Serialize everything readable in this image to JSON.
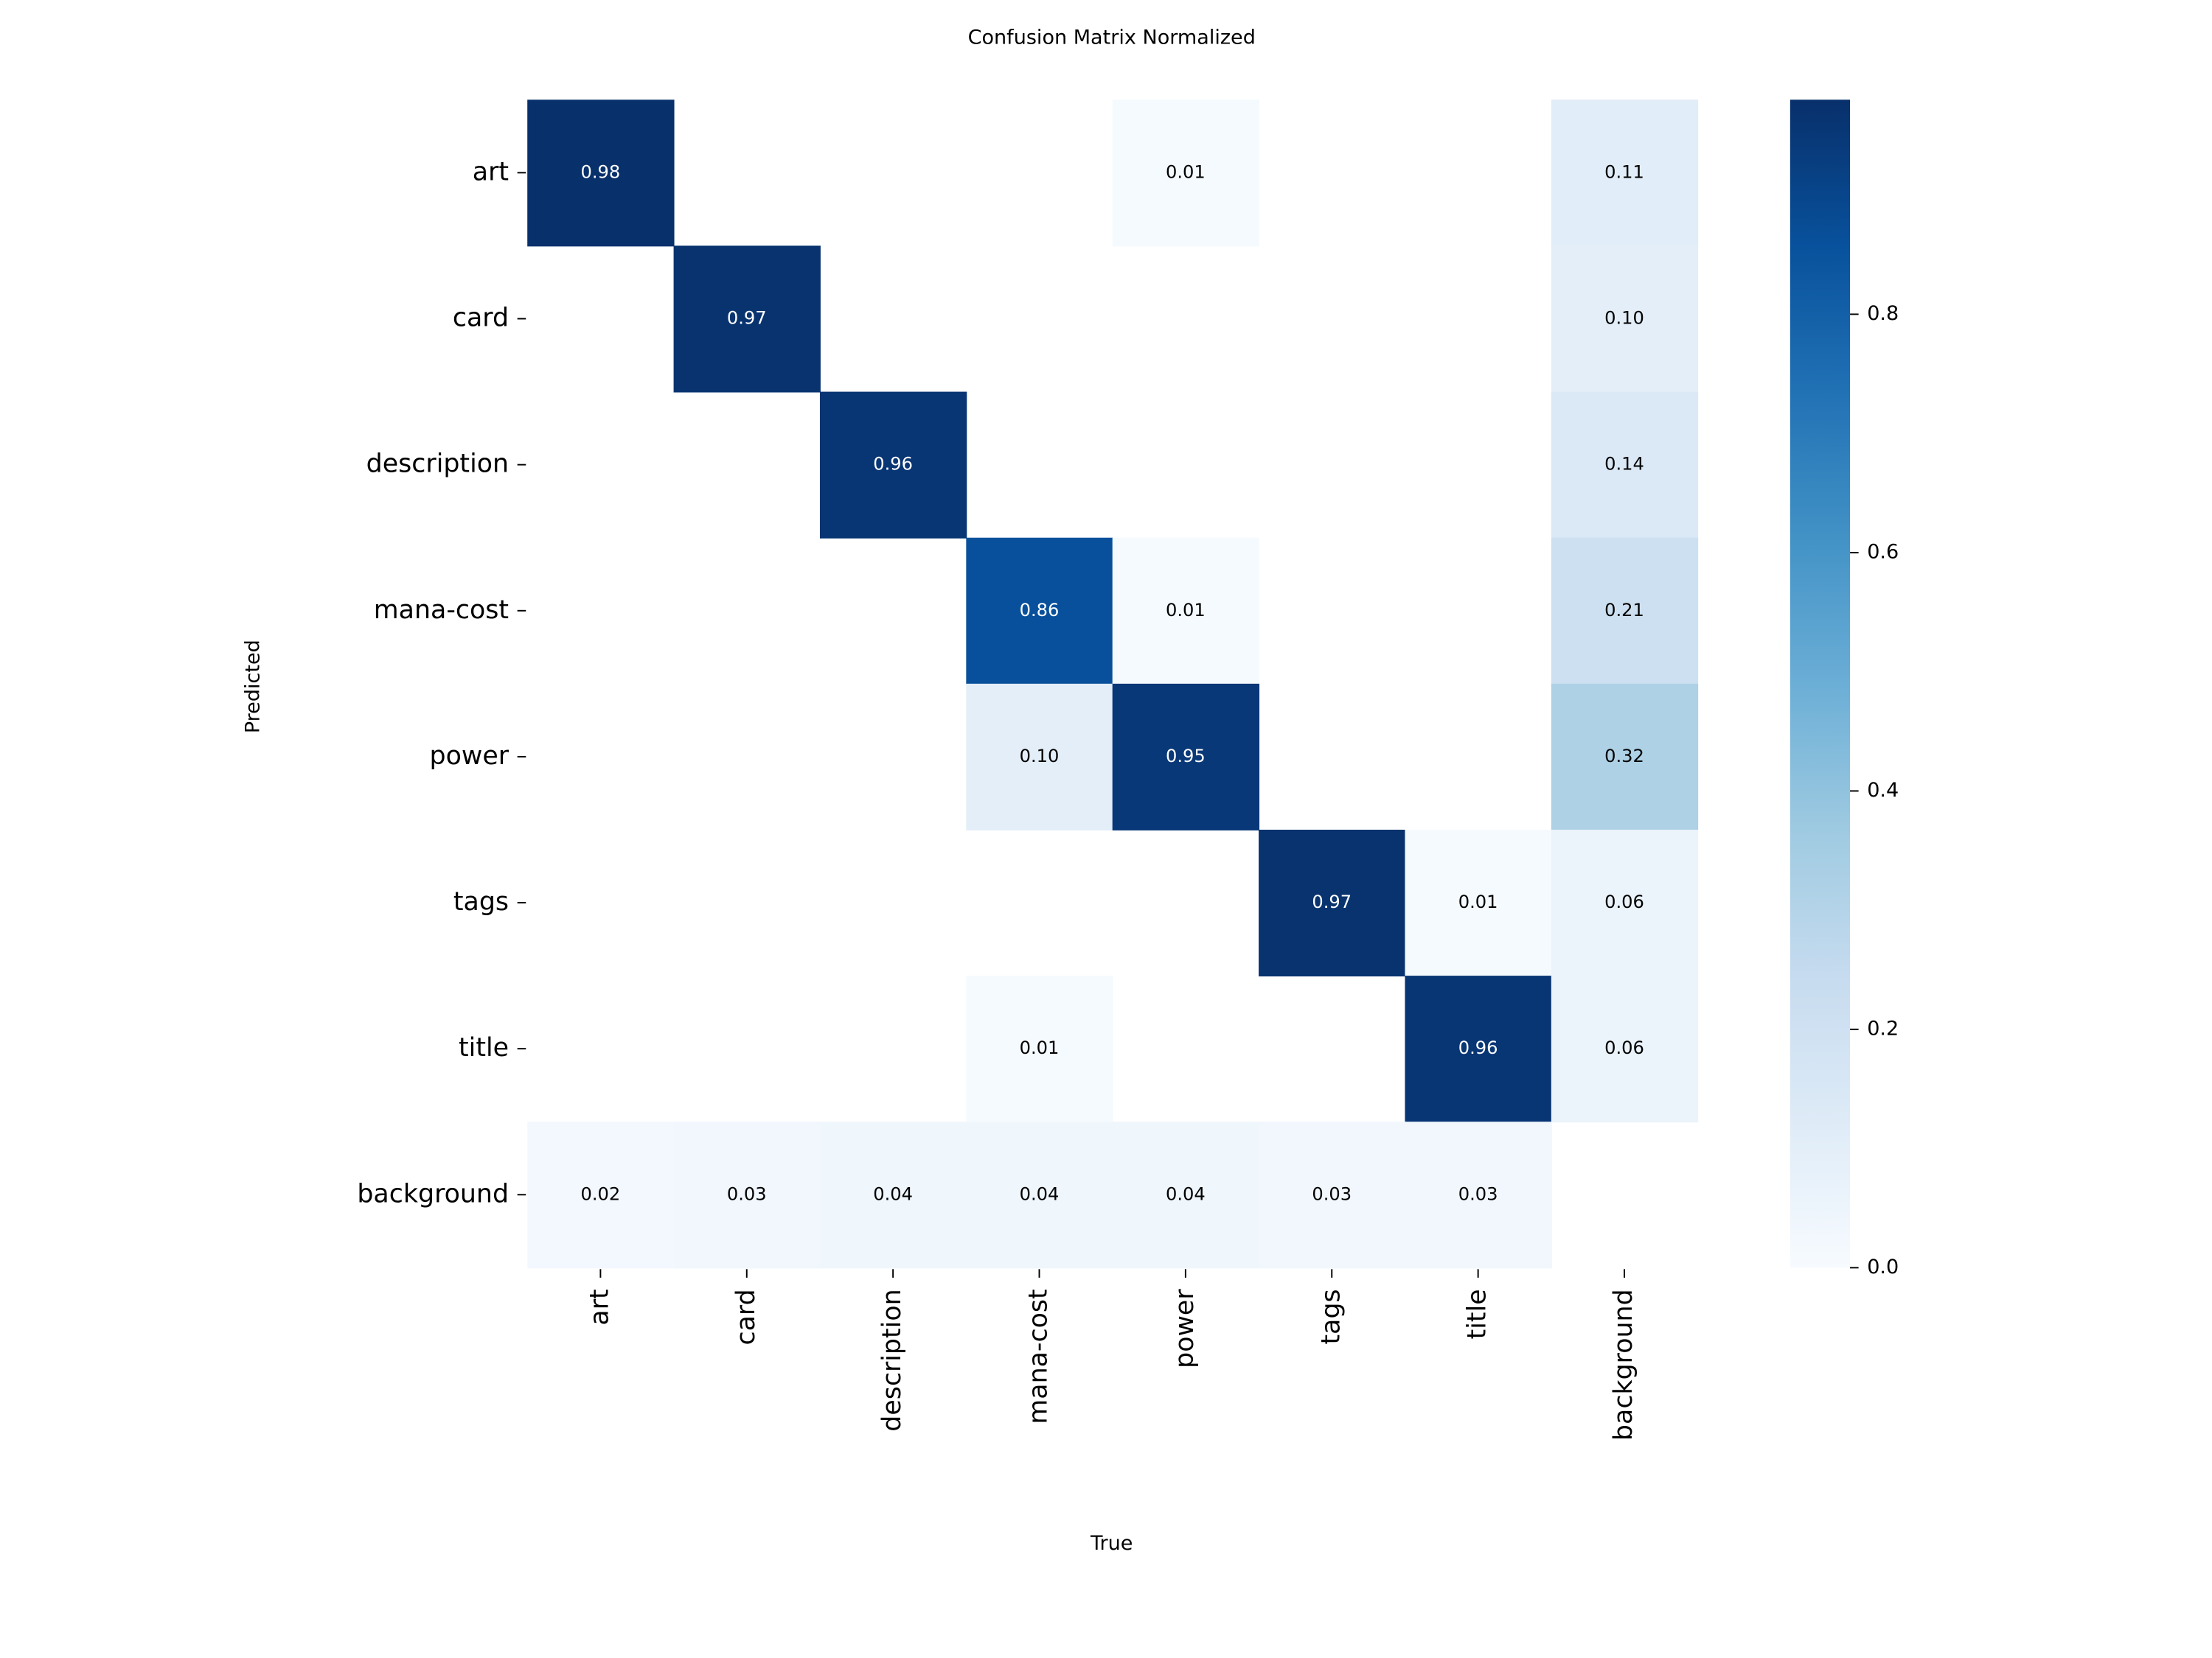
{
  "chart_data": {
    "type": "heatmap",
    "title": "Confusion Matrix Normalized",
    "x_label": "True",
    "y_label": "Predicted",
    "x_categories": [
      "art",
      "card",
      "description",
      "mana-cost",
      "power",
      "tags",
      "title",
      "background"
    ],
    "y_categories": [
      "art",
      "card",
      "description",
      "mana-cost",
      "power",
      "tags",
      "title",
      "background"
    ],
    "values": [
      [
        0.98,
        null,
        null,
        null,
        0.01,
        null,
        null,
        0.11
      ],
      [
        null,
        0.97,
        null,
        null,
        null,
        null,
        null,
        0.1
      ],
      [
        null,
        null,
        0.96,
        null,
        null,
        null,
        null,
        0.14
      ],
      [
        null,
        null,
        null,
        0.86,
        0.01,
        null,
        null,
        0.21
      ],
      [
        null,
        null,
        null,
        0.1,
        0.95,
        null,
        null,
        0.32
      ],
      [
        null,
        null,
        null,
        null,
        null,
        0.97,
        0.01,
        0.06
      ],
      [
        null,
        null,
        null,
        0.01,
        null,
        null,
        0.96,
        0.06
      ],
      [
        0.02,
        0.03,
        0.04,
        0.04,
        0.04,
        0.03,
        0.03,
        null
      ]
    ],
    "value_labels": [
      [
        "0.98",
        null,
        null,
        null,
        "0.01",
        null,
        null,
        "0.11"
      ],
      [
        null,
        "0.97",
        null,
        null,
        null,
        null,
        null,
        "0.10"
      ],
      [
        null,
        null,
        "0.96",
        null,
        null,
        null,
        null,
        "0.14"
      ],
      [
        null,
        null,
        null,
        "0.86",
        "0.01",
        null,
        null,
        "0.21"
      ],
      [
        null,
        null,
        null,
        "0.10",
        "0.95",
        null,
        null,
        "0.32"
      ],
      [
        null,
        null,
        null,
        null,
        null,
        "0.97",
        "0.01",
        "0.06"
      ],
      [
        null,
        null,
        null,
        "0.01",
        null,
        null,
        "0.96",
        "0.06"
      ],
      [
        "0.02",
        "0.03",
        "0.04",
        "0.04",
        "0.04",
        "0.03",
        "0.03",
        null
      ]
    ],
    "colormap": "Blues",
    "clim": [
      0,
      0.98
    ],
    "cticks": [
      {
        "value": 0,
        "label": "0.0"
      },
      {
        "value": 0.2,
        "label": "0.2"
      },
      {
        "value": 0.4,
        "label": "0.4"
      },
      {
        "value": 0.6,
        "label": "0.6"
      },
      {
        "value": 0.8,
        "label": "0.8"
      }
    ]
  }
}
